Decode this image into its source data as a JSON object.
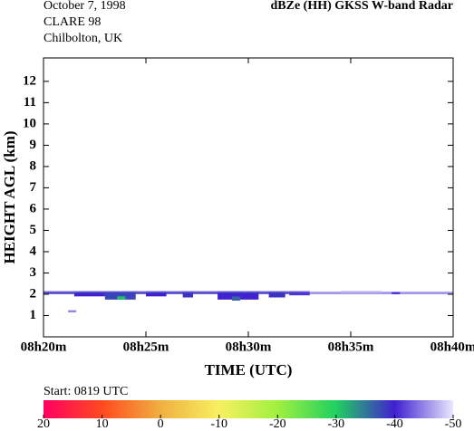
{
  "chart_data": {
    "type": "heatmap",
    "header_left": [
      "October  7, 1998",
      "CLARE 98",
      "Chilbolton, UK"
    ],
    "title": "dBZe (HH)   GKSS  W-band Radar",
    "xlabel": "TIME (UTC)",
    "ylabel": "HEIGHT AGL (km)",
    "xlim": [
      500,
      520
    ],
    "xticks": [
      {
        "value": 500,
        "label": "08h20m"
      },
      {
        "value": 505,
        "label": "08h25m"
      },
      {
        "value": 510,
        "label": "08h30m"
      },
      {
        "value": 515,
        "label": "08h35m"
      },
      {
        "value": 520,
        "label": "08h40m"
      }
    ],
    "ylim": [
      0,
      13.1
    ],
    "yticks": [
      1,
      2,
      3,
      4,
      5,
      6,
      7,
      8,
      9,
      10,
      11,
      12
    ],
    "cells": [
      {
        "t0": 500,
        "t1": 513,
        "h0": 2.0,
        "h1": 2.15,
        "z": -44
      },
      {
        "t0": 501.5,
        "t1": 503,
        "h0": 1.9,
        "h1": 2.1,
        "z": -40
      },
      {
        "t0": 503,
        "t1": 504.5,
        "h0": 1.75,
        "h1": 2.1,
        "z": -38
      },
      {
        "t0": 503.6,
        "t1": 504.0,
        "h0": 1.75,
        "h1": 1.9,
        "z": -31
      },
      {
        "t0": 505,
        "t1": 506,
        "h0": 1.9,
        "h1": 2.1,
        "z": -40
      },
      {
        "t0": 506.8,
        "t1": 507.3,
        "h0": 1.85,
        "h1": 2.1,
        "z": -39
      },
      {
        "t0": 508.5,
        "t1": 510.5,
        "h0": 1.75,
        "h1": 2.1,
        "z": -40
      },
      {
        "t0": 509.2,
        "t1": 509.6,
        "h0": 1.7,
        "h1": 1.9,
        "z": -36
      },
      {
        "t0": 511,
        "t1": 511.8,
        "h0": 1.85,
        "h1": 2.1,
        "z": -39
      },
      {
        "t0": 512,
        "t1": 513,
        "h0": 1.95,
        "h1": 2.1,
        "z": -41
      },
      {
        "t0": 513,
        "t1": 520,
        "h0": 2.0,
        "h1": 2.12,
        "z": -46
      },
      {
        "t0": 514.5,
        "t1": 516.5,
        "h0": 2.05,
        "h1": 2.15,
        "z": -47
      },
      {
        "t0": 517,
        "t1": 517.4,
        "h0": 2.0,
        "h1": 2.1,
        "z": -41
      },
      {
        "t0": 501.2,
        "t1": 501.6,
        "h0": 1.15,
        "h1": 1.25,
        "z": -45
      },
      {
        "t0": 500,
        "t1": 512.5,
        "h0": 2.04,
        "h1": 2.09,
        "z": -38
      }
    ],
    "start_label": "Start: 0819 UTC",
    "clim": [
      20,
      -50
    ],
    "colormap": [
      {
        "value": 20,
        "color": "#ff0060"
      },
      {
        "value": 10,
        "color": "#ff4a20"
      },
      {
        "value": 0,
        "color": "#f0b040"
      },
      {
        "value": -10,
        "color": "#f8f060"
      },
      {
        "value": -20,
        "color": "#a0f040"
      },
      {
        "value": -30,
        "color": "#20d060"
      },
      {
        "value": -40,
        "color": "#4020d0"
      },
      {
        "value": -50,
        "color": "#e8e8ff"
      }
    ],
    "cticks": [
      20,
      10,
      0,
      -10,
      -20,
      -30,
      -40,
      -50
    ]
  }
}
